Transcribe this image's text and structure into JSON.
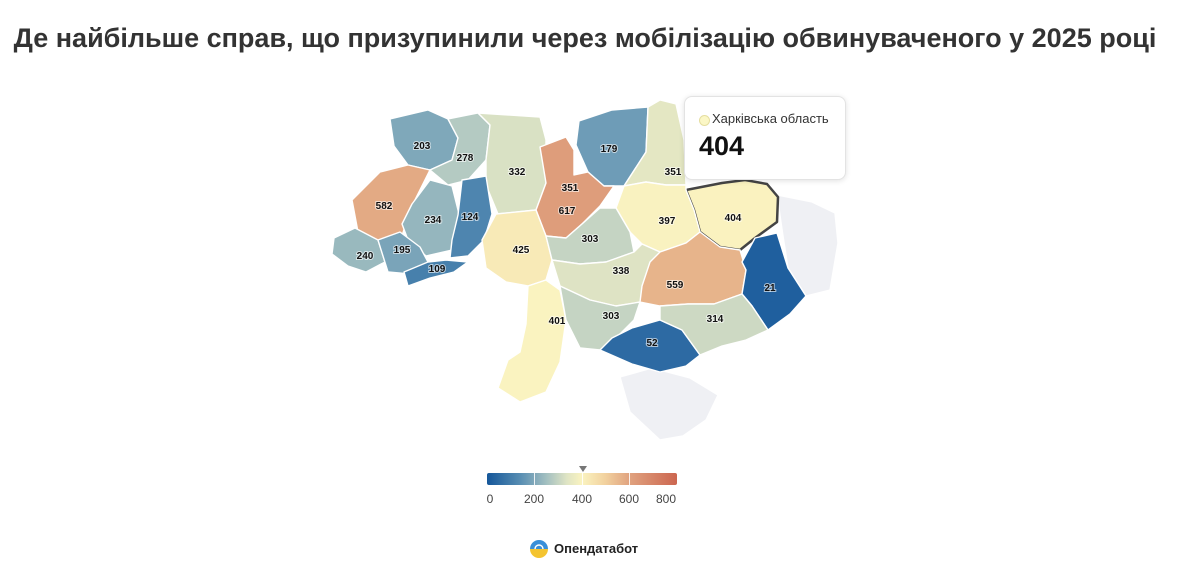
{
  "title": "Де найбільше справ, що призупинили через мобілізацію обвинуваченого у 2025 році",
  "tooltip": {
    "region": "Харківська область",
    "value": "404"
  },
  "brand": {
    "name": "Опендатабот"
  },
  "legend": {
    "min": 0,
    "max": 800,
    "ticks": [
      "0",
      "200",
      "400",
      "600",
      "800"
    ],
    "marker_value": 404
  },
  "colors": {
    "low": "#15579a",
    "mid": "#faf3c0",
    "high": "#cc6650",
    "no_data": "#eff0f4"
  },
  "chart_data": {
    "type": "choropleth",
    "regions": [
      {
        "name": "Волинська",
        "value": 203
      },
      {
        "name": "Рівненська",
        "value": 278
      },
      {
        "name": "Житомирська",
        "value": 332
      },
      {
        "name": "Київ",
        "value": 351
      },
      {
        "name": "Київська",
        "value": 617
      },
      {
        "name": "Чернігівська",
        "value": 179
      },
      {
        "name": "Сумська",
        "value": 351
      },
      {
        "name": "Харківська",
        "value": 404
      },
      {
        "name": "Полтавська",
        "value": 397
      },
      {
        "name": "Львівська",
        "value": 582
      },
      {
        "name": "Тернопільська",
        "value": 234
      },
      {
        "name": "Хмельницька",
        "value": 124
      },
      {
        "name": "Закарпатська",
        "value": 240
      },
      {
        "name": "Івано-Франківська",
        "value": 195
      },
      {
        "name": "Чернівецька",
        "value": 109
      },
      {
        "name": "Вінницька",
        "value": 425
      },
      {
        "name": "Черкаська",
        "value": 303
      },
      {
        "name": "Кіровоградська",
        "value": 338
      },
      {
        "name": "Дніпропетровська",
        "value": 559
      },
      {
        "name": "Донецька",
        "value": 21
      },
      {
        "name": "Одеська",
        "value": 401
      },
      {
        "name": "Миколаївська",
        "value": 303
      },
      {
        "name": "Херсонська",
        "value": 52
      },
      {
        "name": "Запорізька",
        "value": 314
      },
      {
        "name": "Луганська",
        "value": null
      },
      {
        "name": "АР Крим",
        "value": null
      }
    ]
  }
}
